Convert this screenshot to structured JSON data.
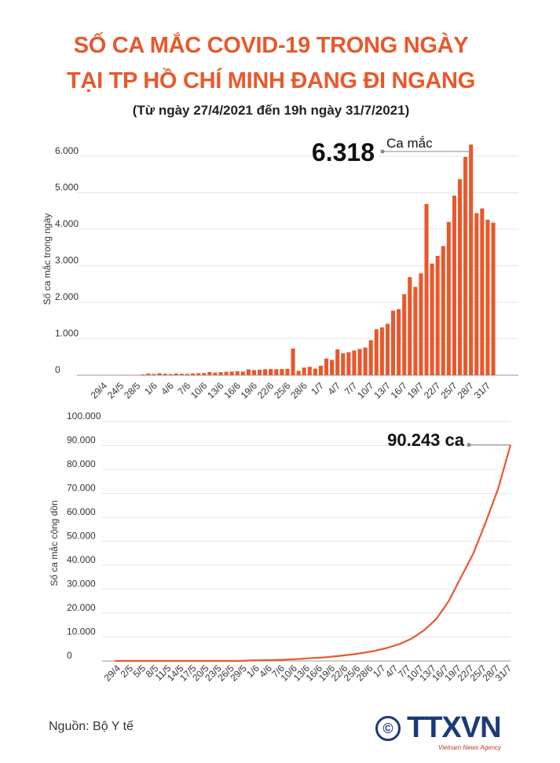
{
  "title_line1": "SỐ CA MẮC COVID-19 TRONG NGÀY",
  "title_line2": "TẠI TP HỒ CHÍ MINH ĐANG ĐI NGANG",
  "subtitle": "(Từ  ngày 27/4/2021 đến 19h ngày 31/7/2021)",
  "source": "Nguồn: Bộ Y tế",
  "logo": {
    "copyright": "©",
    "brand": "TTXVN",
    "tagline": "Vietnam News Agency"
  },
  "colors": {
    "title": "#e8582c",
    "bars": "#e8582c",
    "line": "#e8582c",
    "grid": "#e6e6e6",
    "logo": "#1c3a7a"
  },
  "chart_data": [
    {
      "type": "bar",
      "ylabel": "Số ca mắc trong ngày",
      "ylim": [
        0,
        6000
      ],
      "yticks": [
        0,
        1000,
        2000,
        3000,
        4000,
        5000,
        6000
      ],
      "ytick_labels": [
        "0",
        "1.000",
        "2.000",
        "3.000",
        "4.000",
        "5.000",
        "6.000"
      ],
      "tick_labels": [
        "29/4",
        "24/5",
        "28/5",
        "1/6",
        "4/6",
        "7/6",
        "10/6",
        "13/6",
        "16/6",
        "19/6",
        "22/6",
        "25/6",
        "28/6",
        "1/7",
        "4/7",
        "7/7",
        "10/7",
        "13/7",
        "16/7",
        "19/7",
        "22/7",
        "25/7",
        "28/7",
        "31/7"
      ],
      "values": [
        0,
        0,
        0,
        0,
        0,
        0,
        2,
        8,
        2,
        6,
        20,
        45,
        35,
        55,
        40,
        30,
        45,
        40,
        35,
        50,
        55,
        60,
        90,
        70,
        85,
        95,
        100,
        110,
        100,
        160,
        140,
        150,
        165,
        170,
        165,
        170,
        175,
        730,
        120,
        210,
        230,
        180,
        260,
        460,
        420,
        710,
        600,
        630,
        680,
        720,
        760,
        960,
        1260,
        1310,
        1410,
        1770,
        1810,
        2220,
        2690,
        2420,
        2790,
        4690,
        3060,
        3270,
        3540,
        4200,
        4920,
        5370,
        5980,
        6318,
        4440,
        4570,
        4260,
        4180
      ],
      "annotation": {
        "value_label": "6.318",
        "text": "Ca mắc"
      }
    },
    {
      "type": "line",
      "ylabel": "Số ca mắc cộng dồn",
      "ylim": [
        0,
        100000
      ],
      "yticks": [
        0,
        10000,
        20000,
        30000,
        40000,
        50000,
        60000,
        70000,
        80000,
        90000,
        100000
      ],
      "ytick_labels": [
        "0",
        "10.000",
        "20.000",
        "30.000",
        "40.000",
        "50.000",
        "60.000",
        "70.000",
        "80.000",
        "90.000",
        "100.000"
      ],
      "tick_labels": [
        "29/4",
        "2/5",
        "5/5",
        "8/5",
        "11/5",
        "14/5",
        "17/5",
        "20/5",
        "23/5",
        "26/5",
        "29/5",
        "1/6",
        "4/6",
        "7/6",
        "10/6",
        "13/6",
        "16/6",
        "19/6",
        "22/6",
        "25/6",
        "28/6",
        "1/7",
        "4/7",
        "7/7",
        "10/7",
        "13/7",
        "16/7",
        "19/7",
        "22/7",
        "25/7",
        "28/7",
        "31/7"
      ],
      "x_index": [
        0,
        3,
        6,
        9,
        12,
        15,
        18,
        21,
        24,
        27,
        30,
        33,
        36,
        39,
        42,
        45,
        48,
        51,
        54,
        57,
        60,
        63,
        66,
        69,
        72,
        75,
        78,
        81,
        84,
        87,
        90,
        93,
        96
      ],
      "values": [
        0,
        0,
        0,
        0,
        0,
        0,
        0,
        0,
        0,
        0,
        0,
        200,
        300,
        400,
        600,
        850,
        1200,
        1500,
        2000,
        2600,
        3300,
        4200,
        5400,
        7000,
        9300,
        12800,
        17500,
        25000,
        35000,
        45000,
        58000,
        72000,
        90243
      ],
      "annotation": {
        "value_label": "90.243 ca"
      }
    }
  ]
}
